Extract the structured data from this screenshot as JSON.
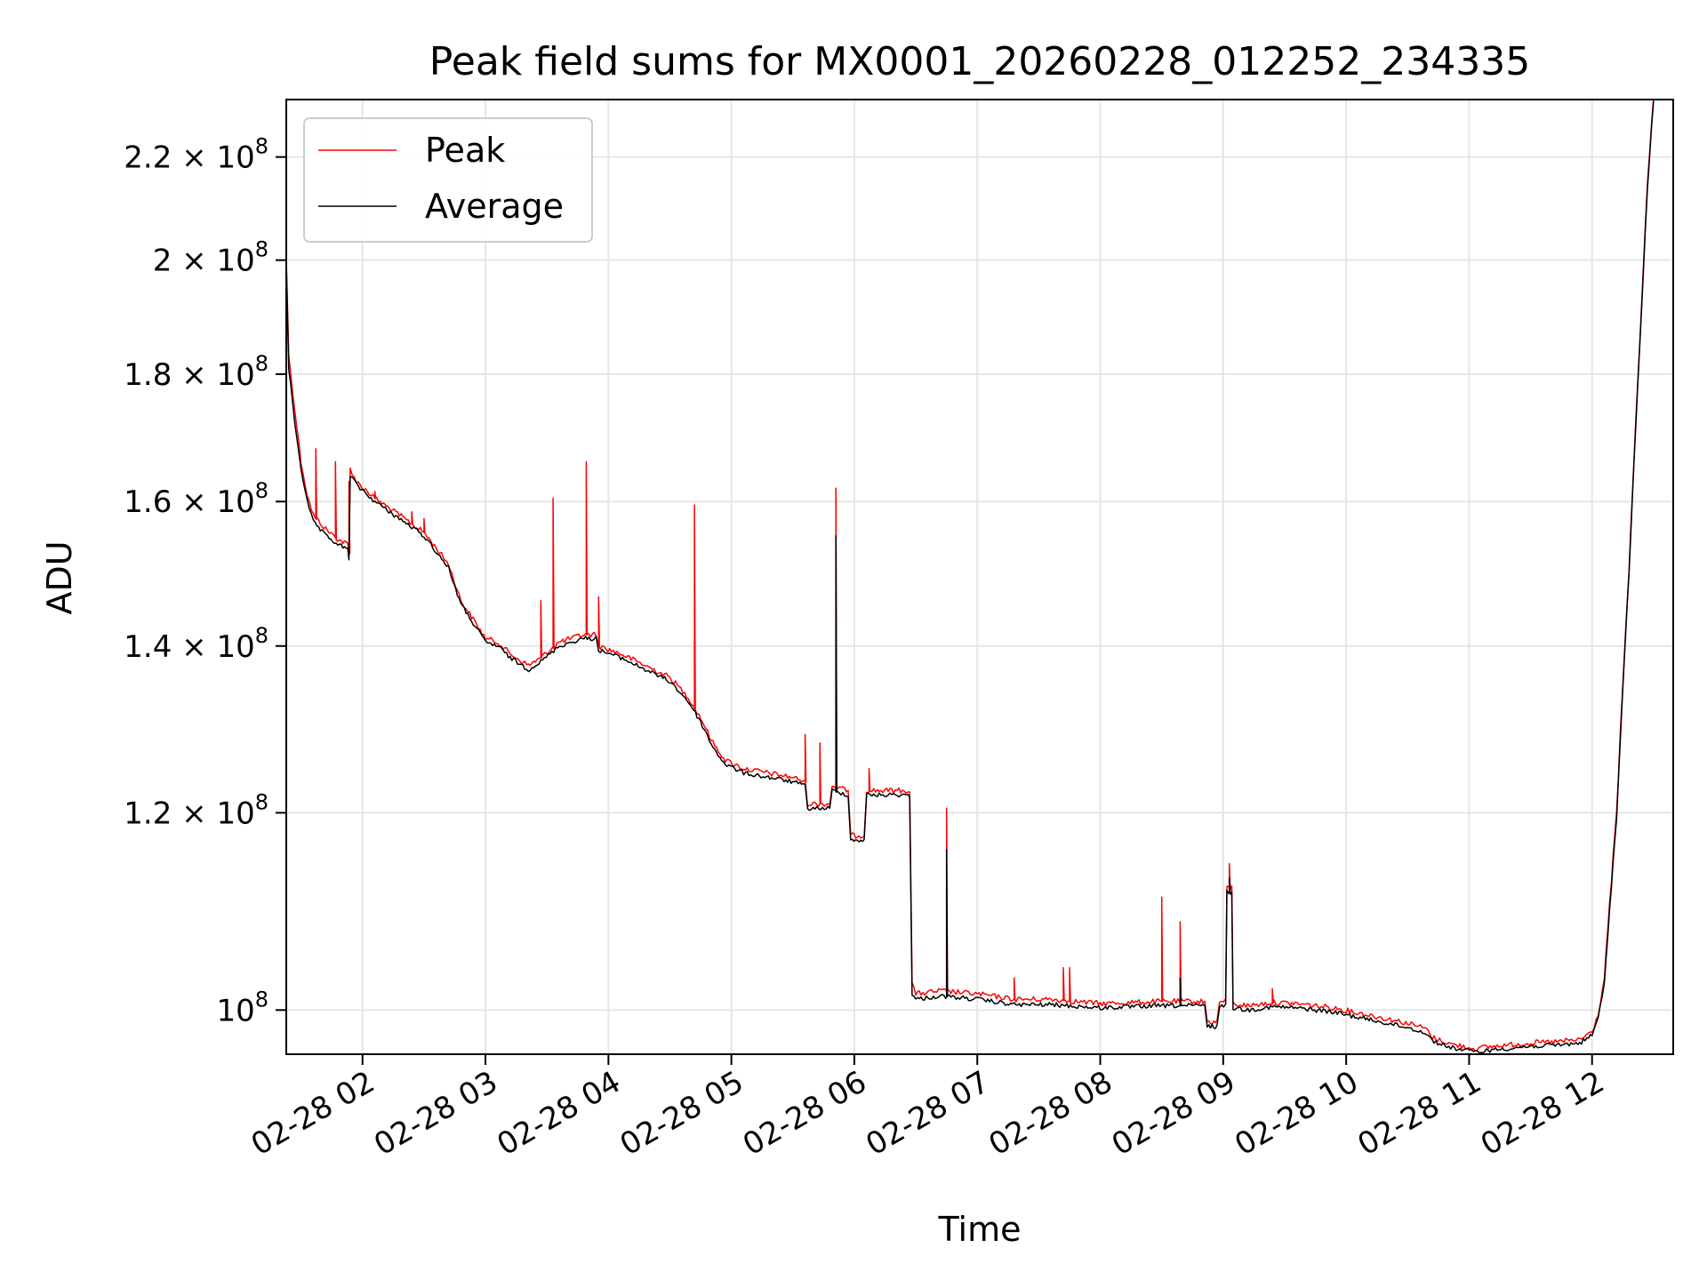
{
  "chart_data": {
    "type": "line",
    "title": "Peak field sums for MX0001_20260228_012252_234335",
    "xlabel": "Time",
    "ylabel": "ADU",
    "yscale": "log",
    "grid": true,
    "legend_position": "upper-left",
    "x_unit": "hours since 02-28 00:00",
    "xlim": [
      1.38,
      12.66
    ],
    "ylim": [
      96000000,
      232000000
    ],
    "x_ticks": [
      {
        "value": 2,
        "label": "02-28 02"
      },
      {
        "value": 3,
        "label": "02-28 03"
      },
      {
        "value": 4,
        "label": "02-28 04"
      },
      {
        "value": 5,
        "label": "02-28 05"
      },
      {
        "value": 6,
        "label": "02-28 06"
      },
      {
        "value": 7,
        "label": "02-28 07"
      },
      {
        "value": 8,
        "label": "02-28 08"
      },
      {
        "value": 9,
        "label": "02-28 09"
      },
      {
        "value": 10,
        "label": "02-28 10"
      },
      {
        "value": 11,
        "label": "02-28 11"
      },
      {
        "value": 12,
        "label": "02-28 12"
      }
    ],
    "y_ticks": [
      {
        "value": 100000000,
        "mantissa": "",
        "base": "10",
        "exp": "8"
      },
      {
        "value": 120000000,
        "mantissa": "1.2 × ",
        "base": "10",
        "exp": "8"
      },
      {
        "value": 140000000,
        "mantissa": "1.4 × ",
        "base": "10",
        "exp": "8"
      },
      {
        "value": 160000000,
        "mantissa": "1.6 × ",
        "base": "10",
        "exp": "8"
      },
      {
        "value": 180000000,
        "mantissa": "1.8 × ",
        "base": "10",
        "exp": "8"
      },
      {
        "value": 200000000,
        "mantissa": "2 × ",
        "base": "10",
        "exp": "8"
      },
      {
        "value": 220000000,
        "mantissa": "2.2 × ",
        "base": "10",
        "exp": "8"
      }
    ],
    "series": [
      {
        "name": "Peak",
        "color": "#ff0000",
        "points": [
          [
            1.38,
            200.5
          ],
          [
            1.4,
            183
          ],
          [
            1.45,
            174
          ],
          [
            1.5,
            166
          ],
          [
            1.55,
            161
          ],
          [
            1.6,
            158
          ],
          [
            1.7,
            156
          ],
          [
            1.8,
            154.5
          ],
          [
            1.88,
            153.8
          ],
          [
            1.89,
            152.5
          ],
          [
            1.9,
            165
          ],
          [
            1.95,
            163
          ],
          [
            2.1,
            160.5
          ],
          [
            2.3,
            158
          ],
          [
            2.5,
            155.5
          ],
          [
            2.7,
            151
          ],
          [
            2.8,
            146
          ],
          [
            2.9,
            143.5
          ],
          [
            3.0,
            141
          ],
          [
            3.1,
            140.5
          ],
          [
            3.2,
            139
          ],
          [
            3.35,
            137.5
          ],
          [
            3.45,
            138.5
          ],
          [
            3.6,
            140.5
          ],
          [
            3.8,
            141.5
          ],
          [
            3.9,
            141.5
          ],
          [
            3.92,
            140
          ],
          [
            4.1,
            139
          ],
          [
            4.3,
            137.5
          ],
          [
            4.5,
            136
          ],
          [
            4.65,
            133.5
          ],
          [
            4.75,
            131
          ],
          [
            4.85,
            128
          ],
          [
            4.95,
            126
          ],
          [
            5.1,
            125
          ],
          [
            5.3,
            124.5
          ],
          [
            5.5,
            124
          ],
          [
            5.6,
            123.5
          ],
          [
            5.62,
            121
          ],
          [
            5.8,
            121
          ],
          [
            5.82,
            123
          ],
          [
            5.95,
            122.5
          ],
          [
            5.97,
            117.5
          ],
          [
            6.08,
            117.5
          ],
          [
            6.1,
            122.5
          ],
          [
            6.45,
            122.5
          ],
          [
            6.47,
            102.5
          ],
          [
            6.5,
            101.5
          ],
          [
            6.7,
            101.8
          ],
          [
            7.0,
            101.5
          ],
          [
            7.3,
            101
          ],
          [
            7.6,
            101
          ],
          [
            8.0,
            100.6
          ],
          [
            8.5,
            100.8
          ],
          [
            8.85,
            100.8
          ],
          [
            8.87,
            98.9
          ],
          [
            8.95,
            98.9
          ],
          [
            8.97,
            100.8
          ],
          [
            9.02,
            100.8
          ],
          [
            9.03,
            112
          ],
          [
            9.07,
            112
          ],
          [
            9.08,
            100.6
          ],
          [
            9.2,
            100.4
          ],
          [
            9.4,
            100.7
          ],
          [
            9.6,
            100.6
          ],
          [
            9.9,
            100.2
          ],
          [
            10.2,
            99.5
          ],
          [
            10.5,
            98.8
          ],
          [
            10.65,
            98.3
          ],
          [
            10.7,
            97.5
          ],
          [
            10.85,
            96.9
          ],
          [
            11.0,
            96.6
          ],
          [
            11.05,
            96.5
          ],
          [
            11.2,
            96.7
          ],
          [
            11.5,
            97.0
          ],
          [
            11.7,
            97.1
          ],
          [
            11.9,
            97.3
          ],
          [
            12.0,
            98
          ],
          [
            12.05,
            99.5
          ],
          [
            12.1,
            103
          ],
          [
            12.2,
            120
          ],
          [
            12.3,
            150
          ],
          [
            12.4,
            190
          ],
          [
            12.45,
            215
          ],
          [
            12.5,
            232
          ]
        ],
        "spikes": [
          [
            1.62,
            168
          ],
          [
            1.78,
            166
          ],
          [
            1.89,
            163
          ],
          [
            2.1,
            161.5
          ],
          [
            2.4,
            158.5
          ],
          [
            2.5,
            157.5
          ],
          [
            3.45,
            146
          ],
          [
            3.55,
            160.5
          ],
          [
            3.82,
            166
          ],
          [
            3.92,
            146.5
          ],
          [
            4.7,
            159.5
          ],
          [
            5.6,
            129
          ],
          [
            5.72,
            128
          ],
          [
            5.85,
            162
          ],
          [
            6.12,
            125
          ],
          [
            6.75,
            120.5
          ],
          [
            7.3,
            103
          ],
          [
            7.7,
            104
          ],
          [
            7.75,
            104
          ],
          [
            8.5,
            111
          ],
          [
            8.65,
            108.5
          ],
          [
            9.05,
            114.5
          ],
          [
            9.4,
            102
          ]
        ]
      },
      {
        "name": "Average",
        "color": "#000000",
        "points": [
          [
            1.38,
            199.5
          ],
          [
            1.4,
            181
          ],
          [
            1.45,
            172
          ],
          [
            1.5,
            165
          ],
          [
            1.55,
            160
          ],
          [
            1.6,
            157
          ],
          [
            1.7,
            155
          ],
          [
            1.8,
            153.8
          ],
          [
            1.88,
            153
          ],
          [
            1.89,
            151.8
          ],
          [
            1.9,
            164
          ],
          [
            1.95,
            162.5
          ],
          [
            2.1,
            160
          ],
          [
            2.3,
            157.5
          ],
          [
            2.5,
            155
          ],
          [
            2.7,
            150.5
          ],
          [
            2.8,
            145.5
          ],
          [
            2.9,
            143
          ],
          [
            3.0,
            140.5
          ],
          [
            3.1,
            140
          ],
          [
            3.2,
            138.5
          ],
          [
            3.35,
            137
          ],
          [
            3.45,
            138
          ],
          [
            3.6,
            140
          ],
          [
            3.8,
            141
          ],
          [
            3.9,
            141
          ],
          [
            3.92,
            139.5
          ],
          [
            4.1,
            138.5
          ],
          [
            4.3,
            137
          ],
          [
            4.5,
            135.5
          ],
          [
            4.65,
            133
          ],
          [
            4.75,
            130.5
          ],
          [
            4.85,
            127.5
          ],
          [
            4.95,
            125.5
          ],
          [
            5.1,
            124.5
          ],
          [
            5.3,
            124
          ],
          [
            5.5,
            123.5
          ],
          [
            5.6,
            123
          ],
          [
            5.62,
            120.5
          ],
          [
            5.8,
            120.5
          ],
          [
            5.82,
            122.5
          ],
          [
            5.95,
            122
          ],
          [
            5.97,
            117
          ],
          [
            6.08,
            117
          ],
          [
            6.1,
            122
          ],
          [
            6.45,
            122
          ],
          [
            6.47,
            101.5
          ],
          [
            6.5,
            101
          ],
          [
            6.7,
            101.3
          ],
          [
            7.0,
            101
          ],
          [
            7.3,
            100.5
          ],
          [
            7.6,
            100.5
          ],
          [
            8.0,
            100.2
          ],
          [
            8.5,
            100.4
          ],
          [
            8.85,
            100.4
          ],
          [
            8.87,
            98.5
          ],
          [
            8.95,
            98.5
          ],
          [
            8.97,
            100.4
          ],
          [
            9.02,
            100.4
          ],
          [
            9.03,
            111.5
          ],
          [
            9.07,
            111.5
          ],
          [
            9.08,
            100.2
          ],
          [
            9.2,
            100
          ],
          [
            9.4,
            100.3
          ],
          [
            9.6,
            100.2
          ],
          [
            9.9,
            99.8
          ],
          [
            10.2,
            99.1
          ],
          [
            10.5,
            98.4
          ],
          [
            10.65,
            97.9
          ],
          [
            10.7,
            97.2
          ],
          [
            10.85,
            96.6
          ],
          [
            11.0,
            96.3
          ],
          [
            11.05,
            96.2
          ],
          [
            11.2,
            96.4
          ],
          [
            11.5,
            96.7
          ],
          [
            11.7,
            96.8
          ],
          [
            11.9,
            97
          ],
          [
            12.0,
            97.7
          ],
          [
            12.05,
            99.2
          ],
          [
            12.1,
            102.5
          ],
          [
            12.2,
            119.5
          ],
          [
            12.3,
            149.5
          ],
          [
            12.4,
            189.5
          ],
          [
            12.45,
            214
          ],
          [
            12.5,
            232
          ]
        ],
        "spikes": [
          [
            5.85,
            155
          ],
          [
            6.75,
            116
          ],
          [
            9.05,
            113
          ],
          [
            8.65,
            103
          ]
        ]
      }
    ],
    "value_unit": "1e6 ADU"
  },
  "colors": {
    "grid": "#e6e6e6",
    "axes": "#000000"
  }
}
